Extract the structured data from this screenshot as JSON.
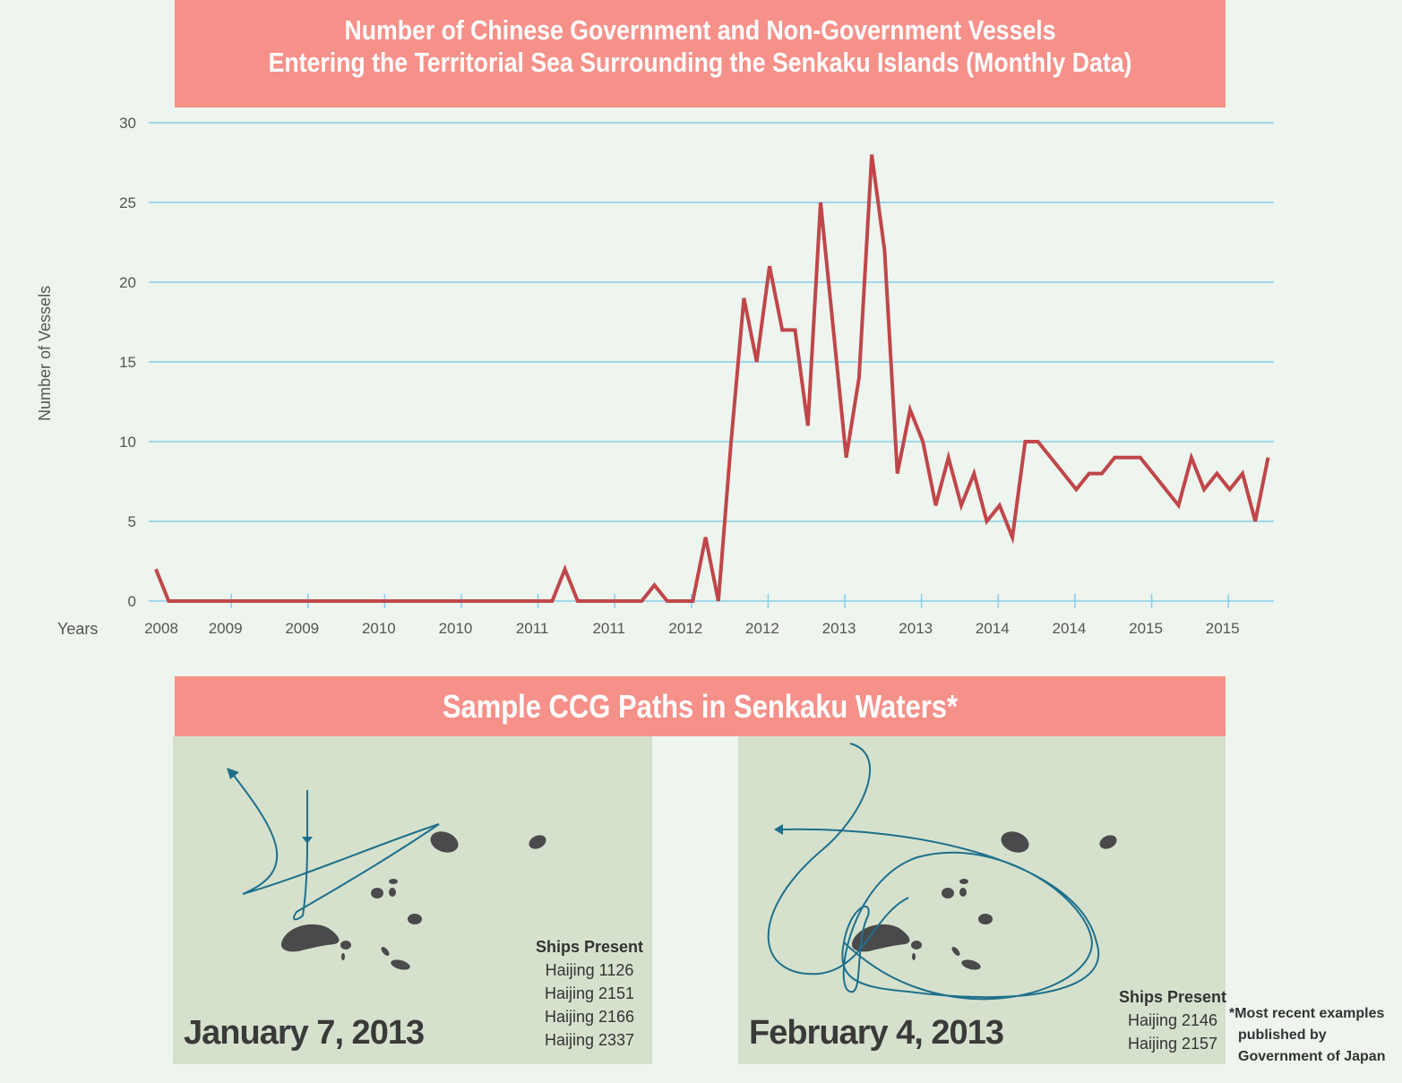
{
  "title": {
    "line1": "Number of Chinese Government and Non-Government Vessels",
    "line2": "Entering the Territorial Sea Surrounding the Senkaku Islands (Monthly Data)"
  },
  "chart_data": {
    "type": "line",
    "title": "Number of Chinese Government and Non-Government Vessels Entering the Territorial Sea Surrounding the Senkaku Islands (Monthly Data)",
    "xlabel": "Years",
    "ylabel": "Number of  Vessels",
    "ylim": [
      0,
      30
    ],
    "yticks": [
      0,
      5,
      10,
      15,
      20,
      25,
      30
    ],
    "xtick_labels": [
      "2008",
      "2009",
      "2009",
      "2010",
      "2010",
      "2011",
      "2011",
      "2012",
      "2012",
      "2013",
      "2013",
      "2014",
      "2014",
      "2015",
      "2015"
    ],
    "months_per_tick": 6,
    "grid": true,
    "series": [
      {
        "name": "Vessels",
        "color": "#c0464a",
        "values": [
          2,
          0,
          0,
          0,
          0,
          0,
          0,
          0,
          0,
          0,
          0,
          0,
          0,
          0,
          0,
          0,
          0,
          0,
          0,
          0,
          0,
          0,
          0,
          0,
          0,
          0,
          0,
          0,
          0,
          0,
          0,
          0,
          2,
          0,
          0,
          0,
          0,
          0,
          0,
          1,
          0,
          0,
          0,
          4,
          0,
          10,
          19,
          15,
          21,
          17,
          17,
          11,
          25,
          17,
          9,
          14,
          28,
          22,
          8,
          12,
          10,
          6,
          9,
          6,
          8,
          5,
          6,
          4,
          10,
          10,
          9,
          8,
          7,
          8,
          8,
          9,
          9,
          9,
          8,
          7,
          6,
          9,
          7,
          8,
          7,
          8,
          5,
          9
        ]
      }
    ]
  },
  "maps": {
    "title": "Sample CCG Paths in Senkaku Waters*",
    "left": {
      "date": "January 7, 2013",
      "ships_label": "Ships Present",
      "ships": [
        "Haijing 1126",
        "Haijing 2151",
        "Haijing 2166",
        "Haijing 2337"
      ]
    },
    "right": {
      "date": "February 4, 2013",
      "ships_label": "Ships Present",
      "ships": [
        "Haijing 2146",
        "Haijing 2157"
      ]
    }
  },
  "footnote": [
    "*Most recent examples",
    "published by",
    "Government of Japan"
  ],
  "colors": {
    "banner": "#f6918a",
    "line": "#c0464a",
    "grid": "#86cfea",
    "path": "#1f6f8b",
    "island": "#4a4a4c"
  }
}
